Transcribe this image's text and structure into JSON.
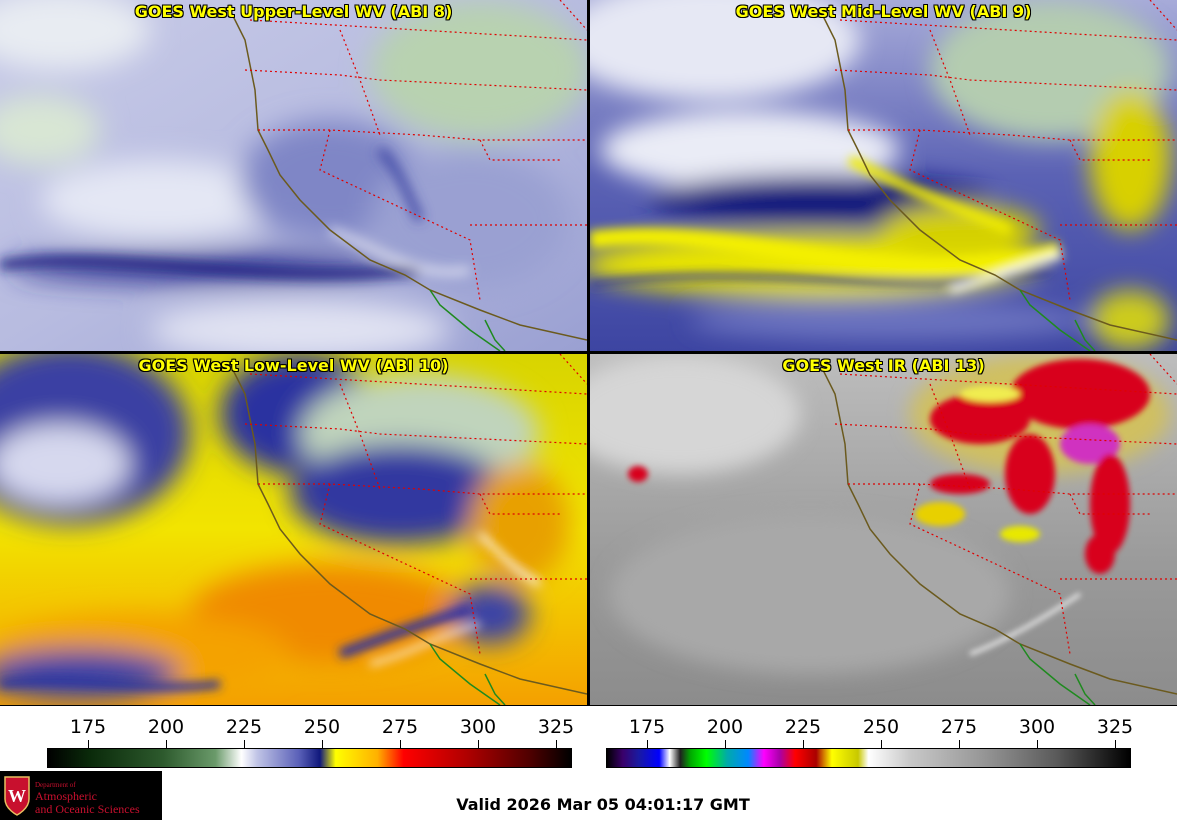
{
  "panels": [
    {
      "title": "GOES West Upper-Level WV (ABI 8)"
    },
    {
      "title": "GOES West Mid-Level WV (ABI 9)"
    },
    {
      "title": "GOES West Low-Level WV (ABI 10)"
    },
    {
      "title": "GOES West IR (ABI 13)"
    }
  ],
  "colorbars": [
    {
      "labels": [
        "175",
        "200",
        "225",
        "250",
        "275",
        "300",
        "325"
      ]
    },
    {
      "labels": [
        "175",
        "200",
        "225",
        "250",
        "275",
        "300",
        "325"
      ]
    }
  ],
  "logo": {
    "line1": "Department of",
    "line2": "Atmospheric",
    "line3": "and Oceanic Sciences",
    "seal_letter": "W"
  },
  "valid_time": "Valid 2026 Mar 05 04:01:17 GMT",
  "colors": {
    "title_yellow": "#ffff00",
    "state_border": "#e00000",
    "coastline": "#6b5a1e",
    "mexico_border": "#1f8a1f",
    "logo_red": "#c8102e"
  }
}
